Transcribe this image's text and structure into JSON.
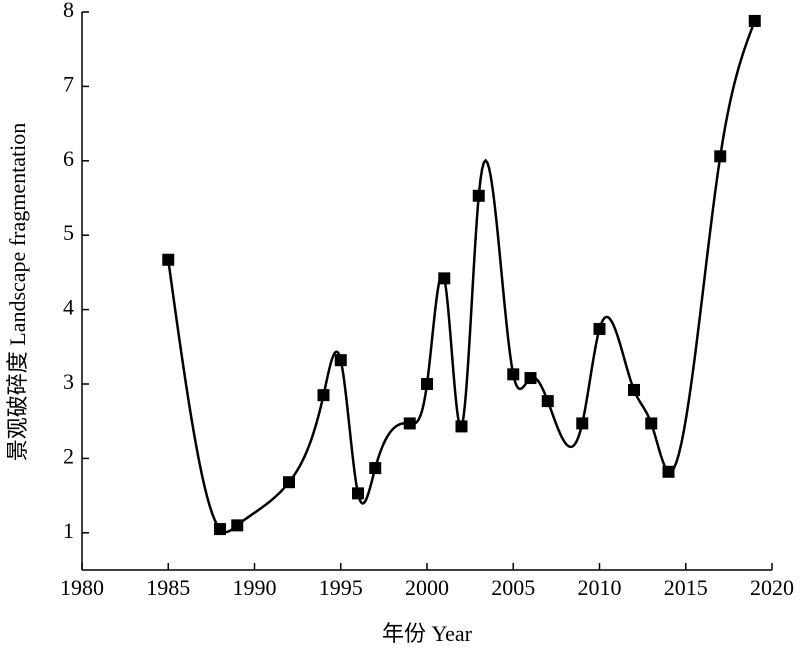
{
  "chart_data": {
    "type": "line",
    "x_label": "年份 Year",
    "y_label": "景观破碎度 Landscape fragmentation",
    "x": [
      1985,
      1988,
      1989,
      1992,
      1994,
      1995,
      1996,
      1997,
      1999,
      2000,
      2001,
      2002,
      2003,
      2005,
      2006,
      2007,
      2009,
      2010,
      2012,
      2013,
      2014,
      2017,
      2019
    ],
    "values": [
      4.67,
      1.05,
      1.1,
      1.68,
      2.85,
      3.32,
      1.53,
      1.87,
      2.47,
      3.0,
      4.42,
      2.43,
      5.53,
      3.13,
      3.08,
      2.77,
      2.47,
      3.74,
      2.92,
      2.47,
      1.82,
      6.06,
      7.88
    ],
    "color": "#000000",
    "xlim": [
      1980,
      2020
    ],
    "xticks": [
      1980,
      1985,
      1990,
      1995,
      2000,
      2005,
      2010,
      2015,
      2020
    ],
    "ylim": [
      0.5,
      8
    ],
    "yticks": [
      1,
      2,
      3,
      4,
      5,
      6,
      7,
      8
    ]
  }
}
